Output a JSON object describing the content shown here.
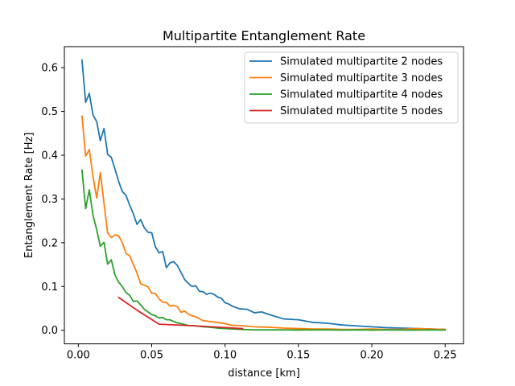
{
  "chart_data": {
    "type": "line",
    "title": "Multipartite Entanglement Rate",
    "xlabel": "distance [km]",
    "ylabel": "Entanglement Rate [Hz]",
    "xlim": [
      -0.0095,
      0.2625
    ],
    "ylim": [
      -0.031,
      0.648
    ],
    "xticks": [
      0.0,
      0.05,
      0.1,
      0.15,
      0.2,
      0.25
    ],
    "xtick_labels": [
      "0.00",
      "0.05",
      "0.10",
      "0.15",
      "0.20",
      "0.25"
    ],
    "yticks": [
      0.0,
      0.1,
      0.2,
      0.3,
      0.4,
      0.5,
      0.6
    ],
    "ytick_labels": [
      "0.0",
      "0.1",
      "0.2",
      "0.3",
      "0.4",
      "0.5",
      "0.6"
    ],
    "grid": false,
    "legend_position": "top-right",
    "series": [
      {
        "name": "Simulated multipartite 2 nodes",
        "color": "#1f77b4",
        "x": [
          0.0025,
          0.005,
          0.0075,
          0.01,
          0.0125,
          0.015,
          0.0175,
          0.02,
          0.0225,
          0.025,
          0.0275,
          0.03,
          0.0325,
          0.035,
          0.0375,
          0.04,
          0.0425,
          0.045,
          0.0475,
          0.05,
          0.0525,
          0.055,
          0.0575,
          0.06,
          0.0625,
          0.065,
          0.0675,
          0.07,
          0.0725,
          0.075,
          0.0775,
          0.08,
          0.0825,
          0.085,
          0.0875,
          0.09,
          0.0925,
          0.095,
          0.0975,
          0.1,
          0.1025,
          0.105,
          0.11,
          0.115,
          0.12,
          0.125,
          0.13,
          0.135,
          0.14,
          0.145,
          0.15,
          0.16,
          0.17,
          0.18,
          0.19,
          0.2,
          0.21,
          0.22,
          0.23,
          0.24,
          0.25
        ],
        "y": [
          0.617,
          0.521,
          0.541,
          0.492,
          0.477,
          0.433,
          0.461,
          0.402,
          0.395,
          0.368,
          0.34,
          0.317,
          0.308,
          0.286,
          0.266,
          0.242,
          0.253,
          0.234,
          0.224,
          0.223,
          0.191,
          0.177,
          0.18,
          0.143,
          0.154,
          0.157,
          0.148,
          0.132,
          0.116,
          0.107,
          0.1,
          0.102,
          0.089,
          0.088,
          0.082,
          0.085,
          0.082,
          0.076,
          0.073,
          0.063,
          0.06,
          0.055,
          0.049,
          0.048,
          0.04,
          0.042,
          0.036,
          0.031,
          0.026,
          0.025,
          0.024,
          0.018,
          0.016,
          0.012,
          0.01,
          0.008,
          0.006,
          0.005,
          0.004,
          0.003,
          0.002
        ]
      },
      {
        "name": "Simulated multipartite 3 nodes",
        "color": "#ff7f0e",
        "x": [
          0.0025,
          0.005,
          0.0075,
          0.01,
          0.0125,
          0.015,
          0.0175,
          0.02,
          0.0225,
          0.025,
          0.0275,
          0.03,
          0.0325,
          0.035,
          0.0375,
          0.04,
          0.0425,
          0.045,
          0.0475,
          0.05,
          0.0525,
          0.055,
          0.0575,
          0.06,
          0.0625,
          0.065,
          0.0675,
          0.07,
          0.0725,
          0.075,
          0.0775,
          0.08,
          0.085,
          0.09,
          0.095,
          0.1,
          0.105,
          0.11,
          0.12,
          0.13,
          0.14,
          0.15,
          0.16,
          0.17,
          0.18,
          0.19,
          0.2,
          0.21,
          0.22,
          0.23,
          0.24,
          0.25
        ],
        "y": [
          0.489,
          0.398,
          0.413,
          0.351,
          0.302,
          0.36,
          0.29,
          0.222,
          0.212,
          0.218,
          0.216,
          0.2,
          0.176,
          0.17,
          0.15,
          0.131,
          0.106,
          0.103,
          0.099,
          0.085,
          0.084,
          0.072,
          0.064,
          0.064,
          0.055,
          0.057,
          0.054,
          0.041,
          0.044,
          0.037,
          0.033,
          0.031,
          0.022,
          0.02,
          0.018,
          0.015,
          0.011,
          0.011,
          0.008,
          0.007,
          0.005,
          0.004,
          0.003,
          0.003,
          0.002,
          0.002,
          0.003,
          0.002,
          0.002,
          0.004,
          0.003,
          0.002
        ]
      },
      {
        "name": "Simulated multipartite 4 nodes",
        "color": "#2ca02c",
        "x": [
          0.0025,
          0.005,
          0.0075,
          0.01,
          0.0125,
          0.015,
          0.0175,
          0.02,
          0.0225,
          0.025,
          0.0275,
          0.03,
          0.0325,
          0.035,
          0.0375,
          0.04,
          0.0425,
          0.045,
          0.0475,
          0.05,
          0.0525,
          0.055,
          0.0575,
          0.06,
          0.0625,
          0.065,
          0.0675,
          0.07,
          0.075,
          0.08,
          0.085,
          0.09,
          0.095,
          0.1,
          0.11,
          0.12,
          0.13,
          0.14,
          0.15,
          0.16,
          0.17,
          0.18,
          0.19,
          0.2,
          0.21,
          0.22,
          0.23,
          0.24,
          0.25
        ],
        "y": [
          0.366,
          0.278,
          0.321,
          0.263,
          0.23,
          0.192,
          0.201,
          0.151,
          0.161,
          0.126,
          0.11,
          0.1,
          0.086,
          0.08,
          0.066,
          0.067,
          0.058,
          0.048,
          0.042,
          0.036,
          0.033,
          0.028,
          0.029,
          0.024,
          0.024,
          0.02,
          0.017,
          0.015,
          0.011,
          0.01,
          0.008,
          0.007,
          0.005,
          0.004,
          0.002,
          0.001,
          0.001,
          0.001,
          0.0005,
          0.001,
          0.001,
          0.0005,
          0.001,
          0.0005,
          0.001,
          0.0005,
          0.0005,
          0.001,
          0.0005
        ]
      },
      {
        "name": "Simulated multipartite 5 nodes",
        "color": "#d62728",
        "x": [
          0.0275,
          0.04,
          0.055,
          0.08,
          0.112
        ],
        "y": [
          0.075,
          0.046,
          0.014,
          0.01,
          0.004
        ]
      }
    ]
  }
}
